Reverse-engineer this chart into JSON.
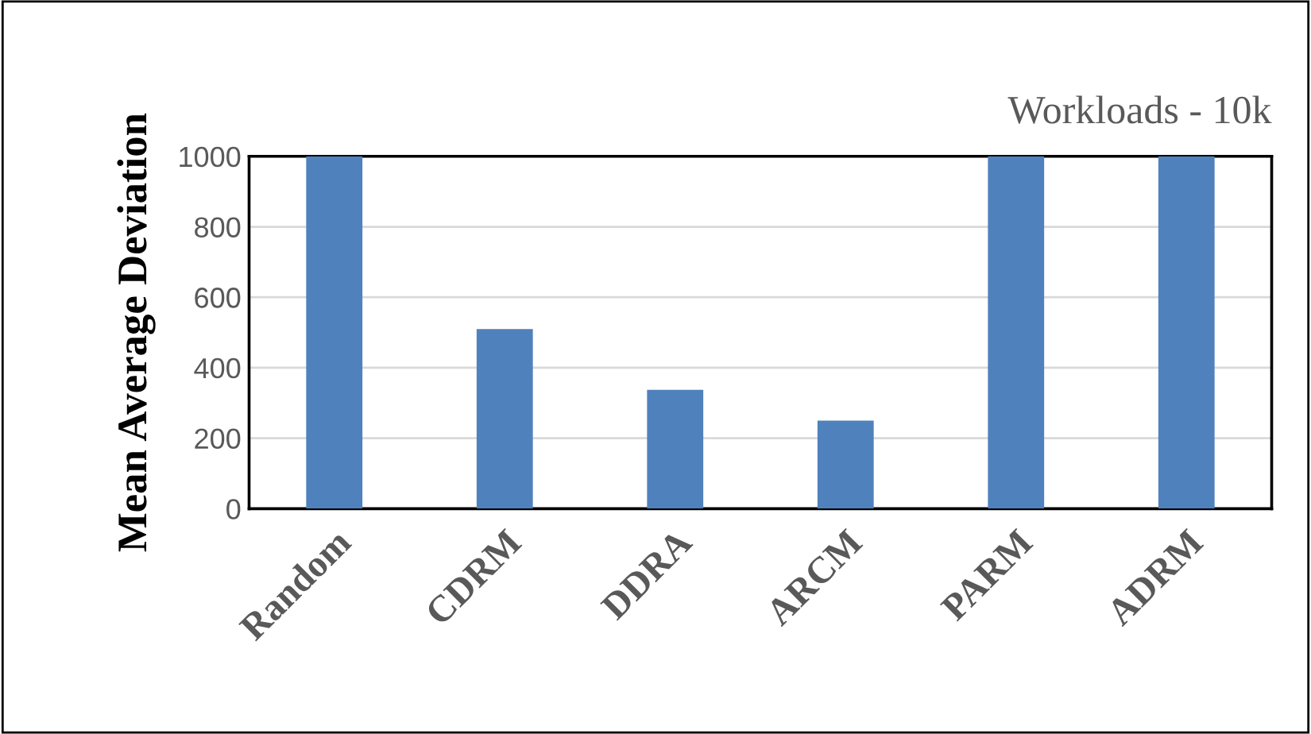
{
  "chart_data": {
    "type": "bar",
    "title": "Workloads - 10k",
    "ylabel": "Mean Average Deviation",
    "categories": [
      "Random",
      "CDRM",
      "DDRA",
      "ARCM",
      "PARM",
      "ADRM"
    ],
    "values": [
      1000,
      510,
      337,
      250,
      1000,
      1000
    ],
    "color": "#4f81bd",
    "ylim": [
      0,
      1000
    ],
    "yticks": [
      0,
      200,
      400,
      600,
      800,
      1000
    ],
    "grid": "y"
  }
}
